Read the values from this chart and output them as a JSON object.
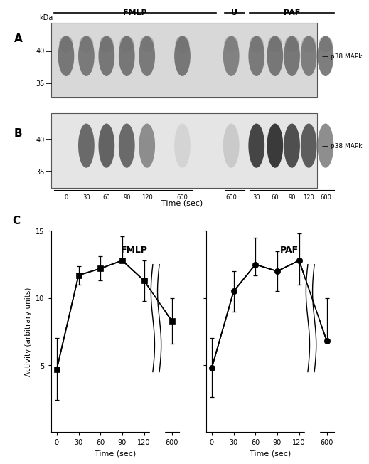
{
  "panel_C_fmlp_y": [
    4.7,
    11.7,
    12.2,
    12.8,
    11.3,
    8.3
  ],
  "panel_C_fmlp_yerr_upper": [
    2.3,
    0.7,
    0.9,
    1.8,
    1.5,
    1.7
  ],
  "panel_C_fmlp_yerr_lower": [
    2.3,
    0.7,
    0.9,
    0.0,
    1.5,
    1.7
  ],
  "panel_C_paf_y": [
    4.8,
    10.5,
    12.5,
    12.0,
    12.8,
    6.8
  ],
  "panel_C_paf_yerr_upper": [
    2.2,
    1.5,
    2.0,
    1.5,
    2.0,
    3.2
  ],
  "panel_C_paf_yerr_lower": [
    2.2,
    1.5,
    0.8,
    1.5,
    1.8,
    0.0
  ],
  "ylim": [
    0,
    15
  ],
  "yticks": [
    5,
    10,
    15
  ],
  "ylabel": "Activity (arbitrary units)",
  "xlabel": "Time (sec)",
  "fmlp_label": "FMLP",
  "paf_label": "PAF",
  "blot_label": "p38 MAPk",
  "kda_label": "kDa",
  "kda_40": "40",
  "kda_35": "35",
  "fmlp_header": "FMLP",
  "u_header": "U",
  "paf_header": "PAF",
  "time_label_blot": "Time (sec)",
  "background_color": "#ffffff"
}
